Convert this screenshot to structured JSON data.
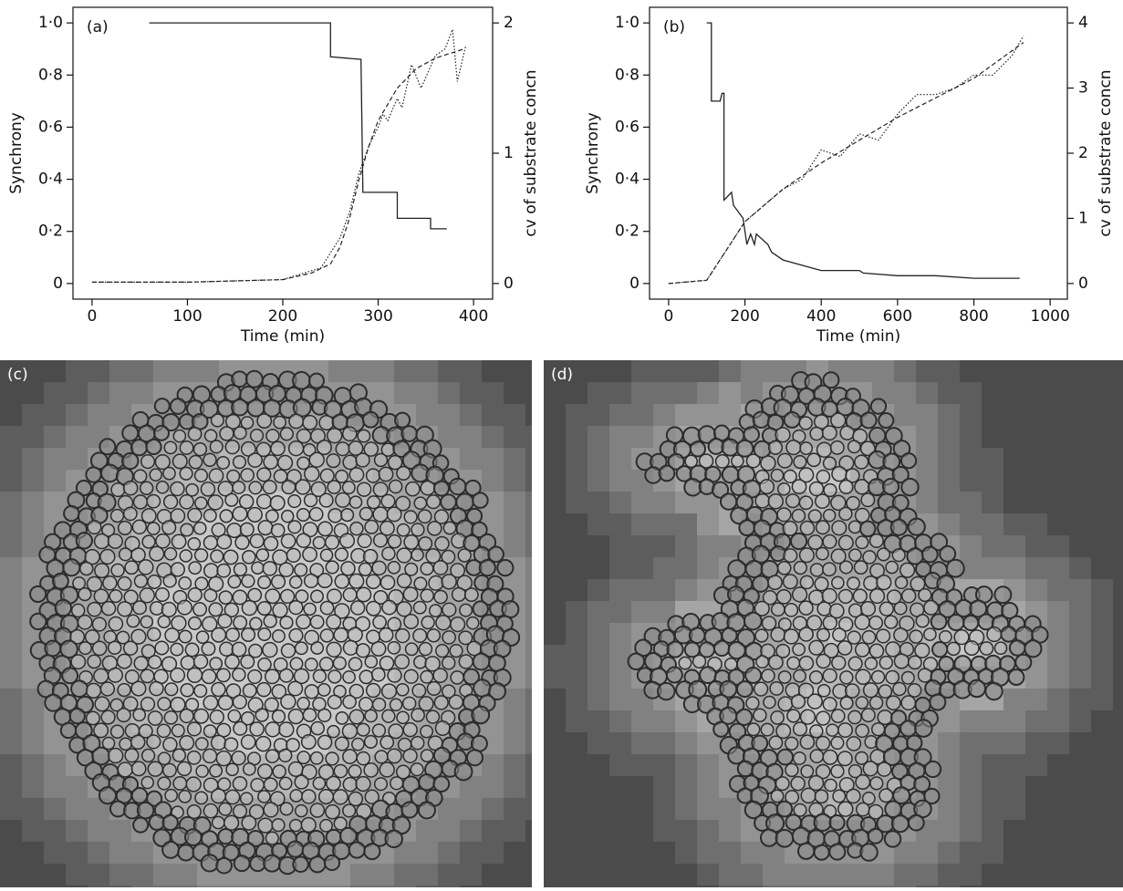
{
  "chart_data": [
    {
      "type": "line",
      "label": "(a)",
      "xlabel": "Time (min)",
      "ylabel": "Synchrony",
      "y2label": "cv of substrate concn",
      "xlim": [
        -20,
        420
      ],
      "xticks": [
        0,
        100,
        200,
        300,
        400
      ],
      "ylim": [
        -0.06,
        1.06
      ],
      "yticks": [
        0,
        {
          "value": 0.2,
          "label": "0·2"
        },
        {
          "value": 0.4,
          "label": "0·4"
        },
        {
          "value": 0.6,
          "label": "0·6"
        },
        {
          "value": 0.8,
          "label": "0·8"
        },
        {
          "value": 1,
          "label": "1·0"
        }
      ],
      "y2lim": [
        -0.12,
        2.12
      ],
      "y2ticks": [
        0,
        1,
        2
      ],
      "series": [
        {
          "color": "#222222",
          "style": "solid",
          "x": [
            60,
            250,
            250,
            282,
            284,
            320,
            320,
            355,
            355,
            372
          ],
          "values": [
            1,
            1,
            0.87,
            0.86,
            0.35,
            0.35,
            0.25,
            0.25,
            0.21,
            0.21
          ]
        },
        {
          "color": "#222222",
          "style": "dotted",
          "axis": "y2",
          "x": [
            0,
            100,
            200,
            240,
            260,
            270,
            280,
            290,
            300,
            305,
            310,
            320,
            325,
            335,
            345,
            360,
            370,
            378,
            383,
            392
          ],
          "values": [
            0.01,
            0.01,
            0.03,
            0.12,
            0.35,
            0.55,
            0.85,
            1.05,
            1.2,
            1.3,
            1.25,
            1.42,
            1.35,
            1.68,
            1.5,
            1.75,
            1.8,
            1.95,
            1.55,
            1.83
          ]
        },
        {
          "color": "#222222",
          "style": "dashed",
          "axis": "y2",
          "x": [
            0,
            100,
            200,
            230,
            250,
            260,
            270,
            280,
            290,
            300,
            320,
            340,
            360,
            390
          ],
          "values": [
            0.01,
            0.01,
            0.03,
            0.08,
            0.15,
            0.28,
            0.5,
            0.8,
            1.05,
            1.25,
            1.5,
            1.65,
            1.73,
            1.8
          ]
        }
      ]
    },
    {
      "type": "line",
      "label": "(b)",
      "xlabel": "Time (min)",
      "ylabel": "Synchrony",
      "y2label": "cv of substrate concn",
      "xlim": [
        -50,
        1045
      ],
      "xticks": [
        0,
        200,
        400,
        600,
        800,
        1000
      ],
      "ylim": [
        -0.06,
        1.06
      ],
      "yticks": [
        0,
        {
          "value": 0.2,
          "label": "0·2"
        },
        {
          "value": 0.4,
          "label": "0·4"
        },
        {
          "value": 0.6,
          "label": "0·6"
        },
        {
          "value": 0.8,
          "label": "0·8"
        },
        {
          "value": 1,
          "label": "1·0"
        }
      ],
      "y2lim": [
        -0.24,
        4.24
      ],
      "y2ticks": [
        0,
        1,
        2,
        3,
        4
      ],
      "series": [
        {
          "color": "#222222",
          "style": "solid",
          "x": [
            100,
            112,
            112,
            135,
            140,
            145,
            145,
            165,
            170,
            195,
            200,
            205,
            215,
            225,
            230,
            260,
            270,
            300,
            350,
            400,
            500,
            510,
            600,
            700,
            800,
            900,
            920
          ],
          "values": [
            1,
            1,
            0.7,
            0.7,
            0.73,
            0.73,
            0.32,
            0.35,
            0.3,
            0.25,
            0.2,
            0.15,
            0.19,
            0.15,
            0.19,
            0.15,
            0.12,
            0.09,
            0.07,
            0.05,
            0.05,
            0.04,
            0.03,
            0.03,
            0.02,
            0.02,
            0.02
          ]
        },
        {
          "color": "#222222",
          "style": "dotted",
          "axis": "y2",
          "x": [
            0,
            100,
            150,
            200,
            250,
            300,
            350,
            400,
            450,
            500,
            550,
            600,
            650,
            700,
            750,
            800,
            850,
            900,
            930
          ],
          "values": [
            0,
            0.05,
            0.5,
            0.95,
            1.2,
            1.45,
            1.6,
            2.05,
            1.95,
            2.3,
            2.2,
            2.6,
            2.9,
            2.9,
            3.0,
            3.2,
            3.2,
            3.5,
            3.8
          ]
        },
        {
          "color": "#222222",
          "style": "dashed",
          "axis": "y2",
          "x": [
            0,
            100,
            150,
            200,
            300,
            400,
            500,
            600,
            700,
            800,
            930
          ],
          "values": [
            0,
            0.05,
            0.5,
            0.95,
            1.45,
            1.85,
            2.2,
            2.55,
            2.85,
            3.15,
            3.7
          ]
        }
      ]
    }
  ],
  "panels": [
    {
      "label": "(c)"
    },
    {
      "label": "(d)"
    }
  ]
}
